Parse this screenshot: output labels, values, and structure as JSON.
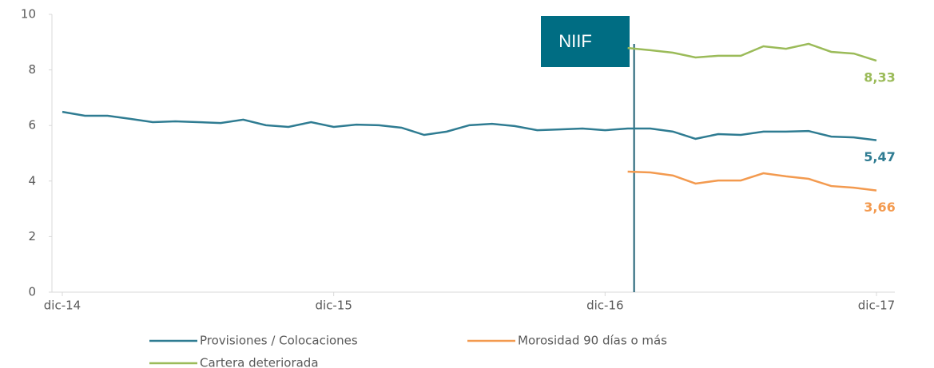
{
  "chart_data": {
    "type": "line",
    "categories": [
      "dic-14",
      null,
      null,
      null,
      null,
      null,
      null,
      null,
      null,
      null,
      null,
      null,
      "dic-15",
      null,
      null,
      null,
      null,
      null,
      null,
      null,
      null,
      null,
      null,
      null,
      "dic-16",
      null,
      null,
      null,
      null,
      null,
      null,
      null,
      null,
      null,
      null,
      null,
      "dic-17"
    ],
    "series": [
      {
        "name": "Provisiones / Colocaciones",
        "color": "#2f7c92",
        "values": [
          6.49,
          6.35,
          6.35,
          6.24,
          6.12,
          6.15,
          6.12,
          6.09,
          6.21,
          6.01,
          5.95,
          6.12,
          5.95,
          6.03,
          6.01,
          5.92,
          5.66,
          5.78,
          6.01,
          6.06,
          5.98,
          5.83,
          5.86,
          5.89,
          5.83,
          5.89,
          5.89,
          5.78,
          5.52,
          5.69,
          5.66,
          5.78,
          5.78,
          5.8,
          5.6,
          5.57,
          5.47
        ],
        "value_labels": [
          null,
          null,
          null,
          null,
          null,
          null,
          null,
          null,
          null,
          null,
          null,
          null,
          null,
          null,
          null,
          null,
          null,
          null,
          null,
          null,
          null,
          null,
          null,
          null,
          null,
          null,
          null,
          null,
          null,
          null,
          null,
          null,
          null,
          null,
          null,
          null,
          "5,47"
        ]
      },
      {
        "name": "Morosidad 90 días o más",
        "color": "#f39a4f",
        "values": [
          null,
          null,
          null,
          null,
          null,
          null,
          null,
          null,
          null,
          null,
          null,
          null,
          null,
          null,
          null,
          null,
          null,
          null,
          null,
          null,
          null,
          null,
          null,
          null,
          null,
          4.34,
          4.31,
          4.2,
          3.91,
          4.02,
          4.02,
          4.28,
          4.17,
          4.08,
          3.82,
          3.76,
          3.66
        ],
        "value_labels": [
          null,
          null,
          null,
          null,
          null,
          null,
          null,
          null,
          null,
          null,
          null,
          null,
          null,
          null,
          null,
          null,
          null,
          null,
          null,
          null,
          null,
          null,
          null,
          null,
          null,
          null,
          null,
          null,
          null,
          null,
          null,
          null,
          null,
          null,
          null,
          null,
          "3,66"
        ]
      },
      {
        "name": "Cartera deteriorada",
        "color": "#9bbb59",
        "values": [
          null,
          null,
          null,
          null,
          null,
          null,
          null,
          null,
          null,
          null,
          null,
          null,
          null,
          null,
          null,
          null,
          null,
          null,
          null,
          null,
          null,
          null,
          null,
          null,
          null,
          8.79,
          8.71,
          8.62,
          8.45,
          8.51,
          8.51,
          8.85,
          8.76,
          8.94,
          8.65,
          8.59,
          8.33
        ],
        "value_labels": [
          null,
          null,
          null,
          null,
          null,
          null,
          null,
          null,
          null,
          null,
          null,
          null,
          null,
          null,
          null,
          null,
          null,
          null,
          null,
          null,
          null,
          null,
          null,
          null,
          null,
          null,
          null,
          null,
          null,
          null,
          null,
          null,
          null,
          null,
          null,
          null,
          "8,33"
        ]
      }
    ],
    "ylim": [
      0,
      10
    ],
    "yticks": [
      0,
      2,
      4,
      6,
      8,
      10
    ],
    "grid": false,
    "annotation": "NIIF",
    "annotation_color": "#006d83",
    "legend": "bottom"
  }
}
